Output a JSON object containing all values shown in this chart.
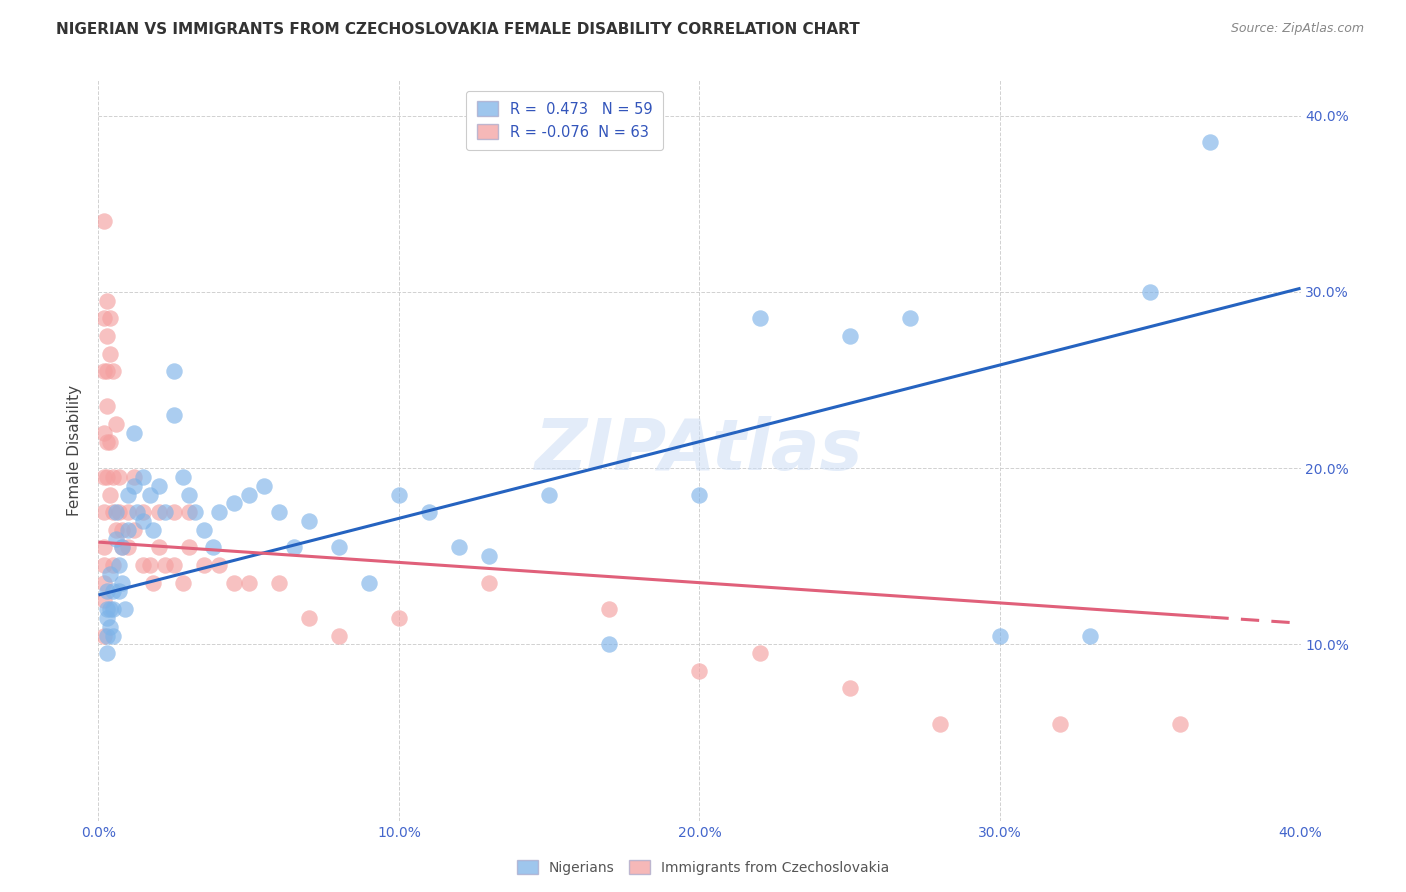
{
  "title": "NIGERIAN VS IMMIGRANTS FROM CZECHOSLOVAKIA FEMALE DISABILITY CORRELATION CHART",
  "source": "Source: ZipAtlas.com",
  "ylabel": "Female Disability",
  "xlim": [
    0.0,
    0.4
  ],
  "ylim": [
    0.0,
    0.42
  ],
  "xtick_labels": [
    "0.0%",
    "10.0%",
    "20.0%",
    "30.0%",
    "40.0%"
  ],
  "xtick_vals": [
    0.0,
    0.1,
    0.2,
    0.3,
    0.4
  ],
  "right_ytick_labels": [
    "10.0%",
    "20.0%",
    "30.0%",
    "40.0%"
  ],
  "right_ytick_vals": [
    0.1,
    0.2,
    0.3,
    0.4
  ],
  "legend_r_nigerian": " 0.473",
  "legend_n_nigerian": "59",
  "legend_r_czech": "-0.076",
  "legend_n_czech": "63",
  "blue_color": "#7EB3E8",
  "pink_color": "#F4A0A0",
  "trend_blue": "#2563C0",
  "trend_pink": "#E0607A",
  "watermark": "ZIPAtlas",
  "nigerian_x": [
    0.003,
    0.003,
    0.003,
    0.003,
    0.003,
    0.004,
    0.004,
    0.004,
    0.005,
    0.005,
    0.005,
    0.006,
    0.006,
    0.007,
    0.007,
    0.008,
    0.008,
    0.009,
    0.01,
    0.01,
    0.012,
    0.012,
    0.013,
    0.015,
    0.015,
    0.017,
    0.018,
    0.02,
    0.022,
    0.025,
    0.025,
    0.028,
    0.03,
    0.032,
    0.035,
    0.038,
    0.04,
    0.045,
    0.05,
    0.055,
    0.06,
    0.065,
    0.07,
    0.08,
    0.09,
    0.1,
    0.11,
    0.12,
    0.13,
    0.15,
    0.17,
    0.2,
    0.22,
    0.25,
    0.27,
    0.3,
    0.33,
    0.35,
    0.37
  ],
  "nigerian_y": [
    0.12,
    0.13,
    0.115,
    0.105,
    0.095,
    0.14,
    0.12,
    0.11,
    0.13,
    0.12,
    0.105,
    0.175,
    0.16,
    0.145,
    0.13,
    0.155,
    0.135,
    0.12,
    0.185,
    0.165,
    0.22,
    0.19,
    0.175,
    0.195,
    0.17,
    0.185,
    0.165,
    0.19,
    0.175,
    0.255,
    0.23,
    0.195,
    0.185,
    0.175,
    0.165,
    0.155,
    0.175,
    0.18,
    0.185,
    0.19,
    0.175,
    0.155,
    0.17,
    0.155,
    0.135,
    0.185,
    0.175,
    0.155,
    0.15,
    0.185,
    0.1,
    0.185,
    0.285,
    0.275,
    0.285,
    0.105,
    0.105,
    0.3,
    0.385
  ],
  "czech_x": [
    0.002,
    0.002,
    0.002,
    0.002,
    0.002,
    0.002,
    0.002,
    0.002,
    0.002,
    0.002,
    0.002,
    0.003,
    0.003,
    0.003,
    0.003,
    0.003,
    0.003,
    0.004,
    0.004,
    0.004,
    0.004,
    0.005,
    0.005,
    0.005,
    0.005,
    0.006,
    0.006,
    0.007,
    0.007,
    0.008,
    0.008,
    0.01,
    0.01,
    0.012,
    0.012,
    0.015,
    0.015,
    0.017,
    0.018,
    0.02,
    0.02,
    0.022,
    0.025,
    0.025,
    0.028,
    0.03,
    0.03,
    0.035,
    0.04,
    0.045,
    0.05,
    0.06,
    0.07,
    0.08,
    0.1,
    0.13,
    0.17,
    0.2,
    0.22,
    0.25,
    0.28,
    0.32,
    0.36
  ],
  "czech_y": [
    0.34,
    0.285,
    0.255,
    0.22,
    0.195,
    0.175,
    0.155,
    0.145,
    0.135,
    0.125,
    0.105,
    0.295,
    0.275,
    0.255,
    0.235,
    0.215,
    0.195,
    0.285,
    0.265,
    0.215,
    0.185,
    0.255,
    0.195,
    0.175,
    0.145,
    0.225,
    0.165,
    0.195,
    0.175,
    0.165,
    0.155,
    0.175,
    0.155,
    0.195,
    0.165,
    0.175,
    0.145,
    0.145,
    0.135,
    0.175,
    0.155,
    0.145,
    0.175,
    0.145,
    0.135,
    0.175,
    0.155,
    0.145,
    0.145,
    0.135,
    0.135,
    0.135,
    0.115,
    0.105,
    0.115,
    0.135,
    0.12,
    0.085,
    0.095,
    0.075,
    0.055,
    0.055,
    0.055
  ]
}
